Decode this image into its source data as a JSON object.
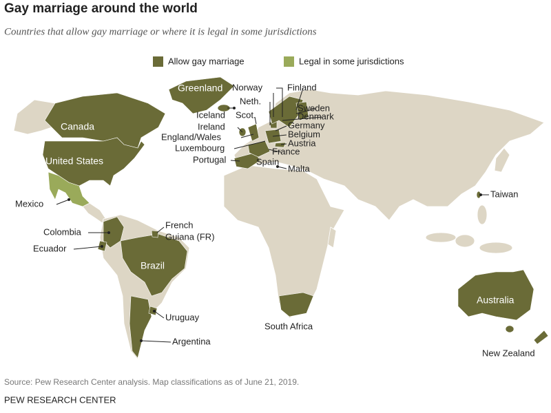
{
  "header": {
    "title": "Gay marriage around the world",
    "subtitle": "Countries that allow gay marriage or where it is legal in some jurisdictions"
  },
  "legend": [
    {
      "label": "Allow gay marriage",
      "color": "#6a6b37"
    },
    {
      "label": "Legal in some jurisdictions",
      "color": "#9aaa5a"
    }
  ],
  "map_labels": {
    "greenland": "Greenland",
    "canada": "Canada",
    "united_states": "United States",
    "norway": "Norway",
    "finland": "Finland",
    "neth": "Neth.",
    "iceland": "Iceland",
    "scot": "Scot.",
    "sweden": "Sweden",
    "denmark": "Denmark",
    "ireland": "Ireland",
    "germany": "Germany",
    "england_wales": "England/Wales",
    "belgium": "Belgium",
    "austria": "Austria",
    "luxembourg": "Luxembourg",
    "france": "France",
    "portugal": "Portugal",
    "spain": "Spain",
    "malta": "Malta",
    "taiwan": "Taiwan",
    "mexico": "Mexico",
    "colombia": "Colombia",
    "french_guiana": [
      "French",
      "Guiana (FR)"
    ],
    "ecuador": "Ecuador",
    "brazil": "Brazil",
    "uruguay": "Uruguay",
    "south_africa": "South Africa",
    "australia": "Australia",
    "argentina": "Argentina",
    "new_zealand": "New Zealand"
  },
  "footer": {
    "source": "Source: Pew Research Center analysis. Map classifications as of June 21, 2019.",
    "org": "PEW RESEARCH CENTER"
  }
}
